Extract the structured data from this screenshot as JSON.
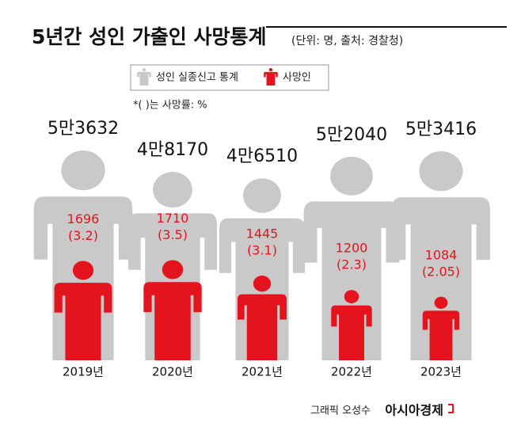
{
  "chart_data": {
    "type": "figure",
    "title": "5년간 성인 가출인 사망통계",
    "subtitle": "(단위: 명, 출처: 경찰청)",
    "note": "*( )는 사망률: %",
    "categories": [
      "2019년",
      "2020년",
      "2021년",
      "2022년",
      "2023년"
    ],
    "series": [
      {
        "name": "성인 실종신고 통계",
        "color": "#c9c9c9",
        "values": [
          53632,
          48170,
          46510,
          52040,
          53416
        ],
        "value_labels": [
          "5만3632",
          "4만8170",
          "4만6510",
          "5만2040",
          "5만3416"
        ]
      },
      {
        "name": "사망인",
        "color": "#e3141e",
        "values": [
          1696,
          1710,
          1445,
          1200,
          1084
        ]
      }
    ],
    "rates": {
      "values": [
        3.2,
        3.5,
        3.1,
        2.3,
        2.05
      ],
      "value_labels": [
        "(3.2)",
        "(3.5)",
        "(3.1)",
        "(2.3)",
        "(2.05)"
      ]
    },
    "credit": "그래픽 오성수",
    "publisher": "아시아경제"
  }
}
